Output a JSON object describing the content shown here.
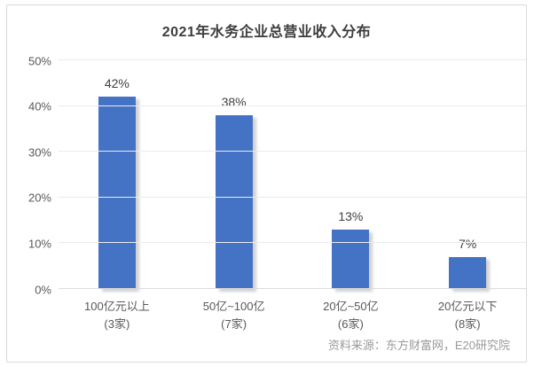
{
  "title": "2021年水务企业总营业收入分布",
  "source": "资料来源：东方财富网，E20研究院",
  "colors": {
    "bar": "#4472C4",
    "grid": "#ebebeb",
    "baseline": "#dcdcdc",
    "axis_text": "#595959",
    "title_text": "#3d3d3d",
    "value_text": "#404040",
    "source_text": "#9a9a9a",
    "frame_border": "#d9d9d9"
  },
  "chart_data": {
    "type": "bar",
    "title": "2021年水务企业总营业收入分布",
    "categories": [
      "100亿元以上",
      "50亿~100亿",
      "20亿~50亿",
      "20亿元以下"
    ],
    "sublabels": [
      "(3家)",
      "(7家)",
      "(6家)",
      "(8家)"
    ],
    "values": [
      42,
      38,
      13,
      7
    ],
    "value_labels": [
      "42%",
      "38%",
      "13%",
      "7%"
    ],
    "xlabel": "",
    "ylabel": "",
    "ylim": [
      0,
      50
    ],
    "ytick_step": 10,
    "ytick_labels": [
      "0%",
      "10%",
      "20%",
      "30%",
      "40%",
      "50%"
    ],
    "grid": "horizontal",
    "legend": "none",
    "bar_color": "#4472C4"
  }
}
